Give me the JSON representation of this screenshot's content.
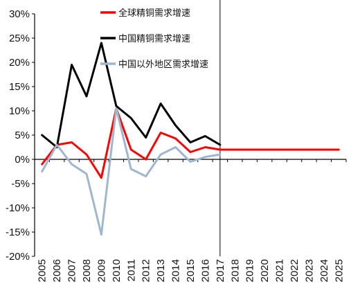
{
  "chart_data": {
    "type": "line",
    "x": [
      "2005",
      "2006",
      "2007",
      "2008",
      "2009",
      "2010",
      "2011",
      "2012",
      "2013",
      "2014",
      "2015",
      "2016",
      "2017",
      "2018",
      "2019",
      "2020",
      "2021",
      "2022",
      "2023",
      "2024",
      "2025"
    ],
    "ylim": [
      -20,
      30
    ],
    "yticks": [
      "30%",
      "25%",
      "20%",
      "15%",
      "10%",
      "5%",
      "0%",
      "-5%",
      "-10%",
      "-15%",
      "-20%"
    ],
    "ytick_values": [
      30,
      25,
      20,
      15,
      10,
      5,
      0,
      -5,
      -10,
      -15,
      -20
    ],
    "grid": false,
    "legend_position": "top",
    "divider_at": "2017",
    "series": [
      {
        "name": "全球精铜需求增速",
        "color": "#ff0000",
        "values": [
          -1.0,
          3.0,
          3.5,
          1.0,
          -3.8,
          10.5,
          2.0,
          0.0,
          5.5,
          4.3,
          1.5,
          2.5,
          2.0,
          2.0,
          2.0,
          2.0,
          2.0,
          2.0,
          2.0,
          2.0,
          2.0
        ]
      },
      {
        "name": "中国精铜需求增速",
        "color": "#000000",
        "values": [
          5.0,
          2.5,
          19.5,
          13.0,
          24.0,
          11.0,
          8.5,
          4.5,
          11.5,
          7.0,
          3.5,
          4.8,
          3.0,
          null,
          null,
          null,
          null,
          null,
          null,
          null,
          null
        ]
      },
      {
        "name": "中国以外地区需求增速",
        "color": "#9fb6cd",
        "values": [
          -2.5,
          3.0,
          -1.0,
          -3.0,
          -15.5,
          10.5,
          -2.0,
          -3.5,
          1.0,
          2.5,
          -0.5,
          0.5,
          1.0,
          null,
          null,
          null,
          null,
          null,
          null,
          null,
          null
        ]
      }
    ]
  }
}
